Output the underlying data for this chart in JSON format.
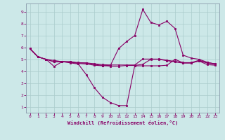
{
  "bg_color": "#cce8e8",
  "line_color": "#880066",
  "grid_color": "#aacccc",
  "xlabel": "Windchill (Refroidissement éolien,°C)",
  "xlabel_color": "#880066",
  "ylim": [
    0.5,
    9.7
  ],
  "xlim": [
    -0.5,
    23.5
  ],
  "yticks": [
    1,
    2,
    3,
    4,
    5,
    6,
    7,
    8,
    9
  ],
  "xticks": [
    0,
    1,
    2,
    3,
    4,
    5,
    6,
    7,
    8,
    9,
    10,
    11,
    12,
    13,
    14,
    15,
    16,
    17,
    18,
    19,
    20,
    21,
    22,
    23
  ],
  "line1_x": [
    0,
    1,
    2,
    3,
    4,
    5,
    6,
    7,
    8,
    9,
    10,
    11,
    12,
    13,
    14,
    15,
    16,
    17,
    18,
    19,
    20,
    21,
    22,
    23
  ],
  "line1_y": [
    5.9,
    5.2,
    5.0,
    4.4,
    4.8,
    4.7,
    4.6,
    3.7,
    2.6,
    1.8,
    1.35,
    1.1,
    1.1,
    4.45,
    4.45,
    4.45,
    4.45,
    4.5,
    5.0,
    4.7,
    4.7,
    4.85,
    4.55,
    4.5
  ],
  "line2_x": [
    0,
    1,
    2,
    3,
    4,
    5,
    6,
    7,
    8,
    9,
    10,
    11,
    12,
    13,
    14,
    15,
    16,
    17,
    18,
    19,
    20,
    21,
    22,
    23
  ],
  "line2_y": [
    5.9,
    5.2,
    5.0,
    4.9,
    4.8,
    4.75,
    4.65,
    4.6,
    4.5,
    4.45,
    4.5,
    5.9,
    6.5,
    7.0,
    9.2,
    8.1,
    7.9,
    8.2,
    7.6,
    5.35,
    5.1,
    5.0,
    4.75,
    4.6
  ],
  "line3_x": [
    0,
    1,
    2,
    3,
    4,
    5,
    6,
    7,
    8,
    9,
    10,
    11,
    12,
    13,
    14,
    15,
    16,
    17,
    18,
    19,
    20,
    21,
    22,
    23
  ],
  "line3_y": [
    5.9,
    5.2,
    5.0,
    4.8,
    4.82,
    4.8,
    4.72,
    4.7,
    4.62,
    4.55,
    4.52,
    4.52,
    4.52,
    4.52,
    5.02,
    5.02,
    5.02,
    4.92,
    4.82,
    4.72,
    4.72,
    4.92,
    4.72,
    4.62
  ],
  "line4_x": [
    0,
    1,
    2,
    3,
    4,
    5,
    6,
    7,
    8,
    9,
    10,
    11,
    12,
    13,
    14,
    15,
    16,
    17,
    18,
    19,
    20,
    21,
    22,
    23
  ],
  "line4_y": [
    5.9,
    5.2,
    5.0,
    4.78,
    4.78,
    4.78,
    4.68,
    4.68,
    4.58,
    4.48,
    4.42,
    4.42,
    4.48,
    4.48,
    4.58,
    5.0,
    5.0,
    4.88,
    4.78,
    4.68,
    4.68,
    4.88,
    4.68,
    4.58
  ]
}
